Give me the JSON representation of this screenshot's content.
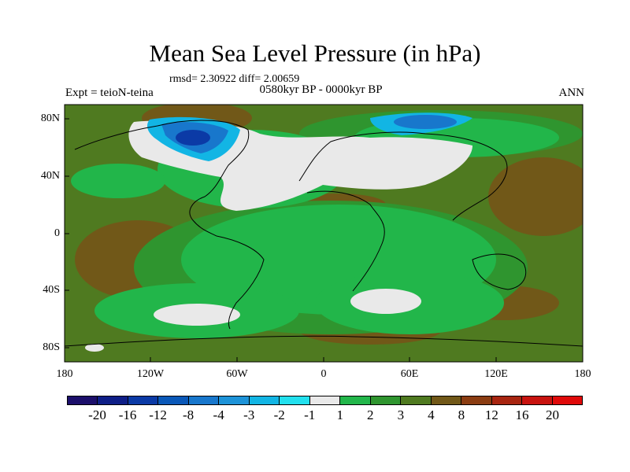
{
  "title": "Mean Sea Level Pressure (in hPa)",
  "stats": "rmsd= 2.30922 diff= 2.00659",
  "period": "0580kyr BP - 0000kyr BP",
  "experiment": "Expt = teioN-teina",
  "season": "ANN",
  "lat_labels": [
    "80N",
    "40N",
    "0",
    "40S",
    "80S"
  ],
  "lon_labels": [
    "180",
    "120W",
    "60W",
    "0",
    "60E",
    "120E",
    "180"
  ],
  "colorbar": {
    "labels": [
      "-20",
      "-16",
      "-12",
      "-8",
      "-4",
      "-3",
      "-2",
      "-1",
      "1",
      "2",
      "3",
      "4",
      "8",
      "12",
      "16",
      "20"
    ],
    "colors": [
      "#1c0f6b",
      "#0e1e87",
      "#0b3aa6",
      "#0a58b8",
      "#1877cc",
      "#1d93d8",
      "#12b5e4",
      "#22e0ee",
      "#e9e9e9",
      "#22b64a",
      "#2f952f",
      "#4f7a20",
      "#715818",
      "#8b3d12",
      "#a82510",
      "#c8130f",
      "#e00a0a"
    ]
  },
  "colors": {
    "land_grey": "#e9e9e9",
    "green_light": "#22b64a",
    "green_mid": "#2f952f",
    "olive": "#4f7a20",
    "brown": "#715818",
    "blue_light": "#12b5e4",
    "blue_mid": "#1877cc",
    "blue_dark": "#0b3aa6"
  }
}
